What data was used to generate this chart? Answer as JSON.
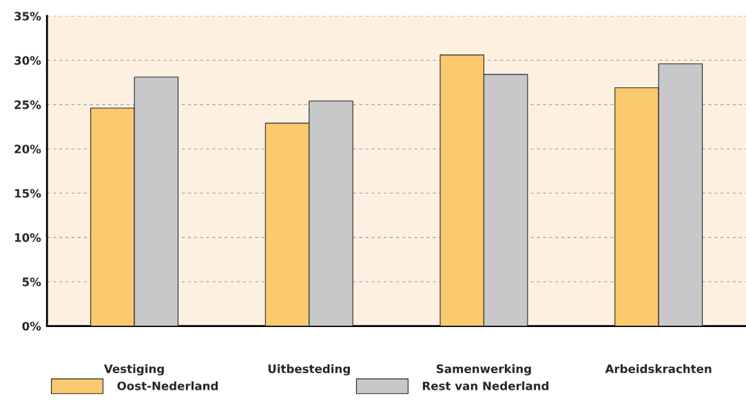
{
  "chart_data": {
    "type": "bar",
    "categories": [
      "Vestiging",
      "Uitbesteding",
      "Samenwerking",
      "Arbeidskrachten"
    ],
    "series": [
      {
        "name": "Oost-Nederland",
        "color": "#fbc96e",
        "values": [
          24.6,
          22.9,
          30.6,
          26.9
        ]
      },
      {
        "name": "Rest van Nederland",
        "color": "#c8c8ca",
        "values": [
          28.1,
          25.4,
          28.4,
          29.6
        ]
      }
    ],
    "ylim": [
      0,
      35
    ],
    "yticks": [
      {
        "value": 0,
        "label": "0%"
      },
      {
        "value": 5,
        "label": "5%"
      },
      {
        "value": 10,
        "label": "10%"
      },
      {
        "value": 15,
        "label": "15%"
      },
      {
        "value": 20,
        "label": "20%"
      },
      {
        "value": 25,
        "label": "25%"
      },
      {
        "value": 30,
        "label": "30%"
      },
      {
        "value": 35,
        "label": "35%"
      }
    ],
    "grid": "y",
    "legend": "bottom"
  }
}
